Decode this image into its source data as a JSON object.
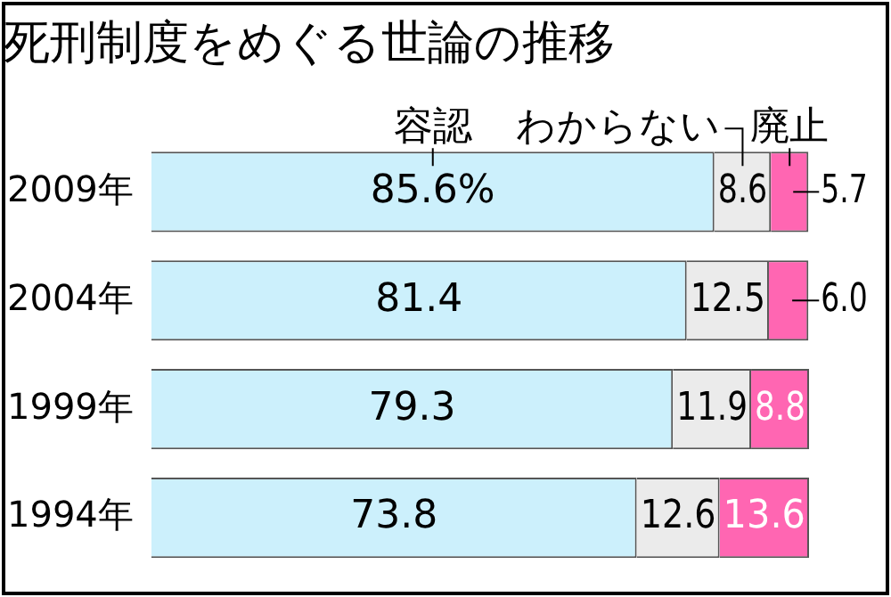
{
  "chart_data": {
    "type": "bar",
    "orientation": "horizontal",
    "stacked": true,
    "title": "死刑制度をめぐる世論の推移",
    "categories": [
      "2009年",
      "2004年",
      "1999年",
      "1994年"
    ],
    "legend": false,
    "series": [
      {
        "name": "容認",
        "color": "#ccf0fc",
        "values": [
          85.6,
          81.4,
          79.3,
          73.8
        ],
        "value_labels": [
          "85.6%",
          "81.4",
          "79.3",
          "73.8"
        ]
      },
      {
        "name": "わからない",
        "color": "#ebebeb",
        "values": [
          8.6,
          12.5,
          11.9,
          12.6
        ],
        "value_labels": [
          "8.6",
          "12.5",
          "11.9",
          "12.6"
        ]
      },
      {
        "name": "廃止",
        "color": "#ff66b2",
        "values": [
          5.7,
          6.0,
          8.8,
          13.6
        ],
        "value_labels": [
          "5.7",
          "6.0",
          "8.8",
          "13.6"
        ]
      }
    ]
  }
}
